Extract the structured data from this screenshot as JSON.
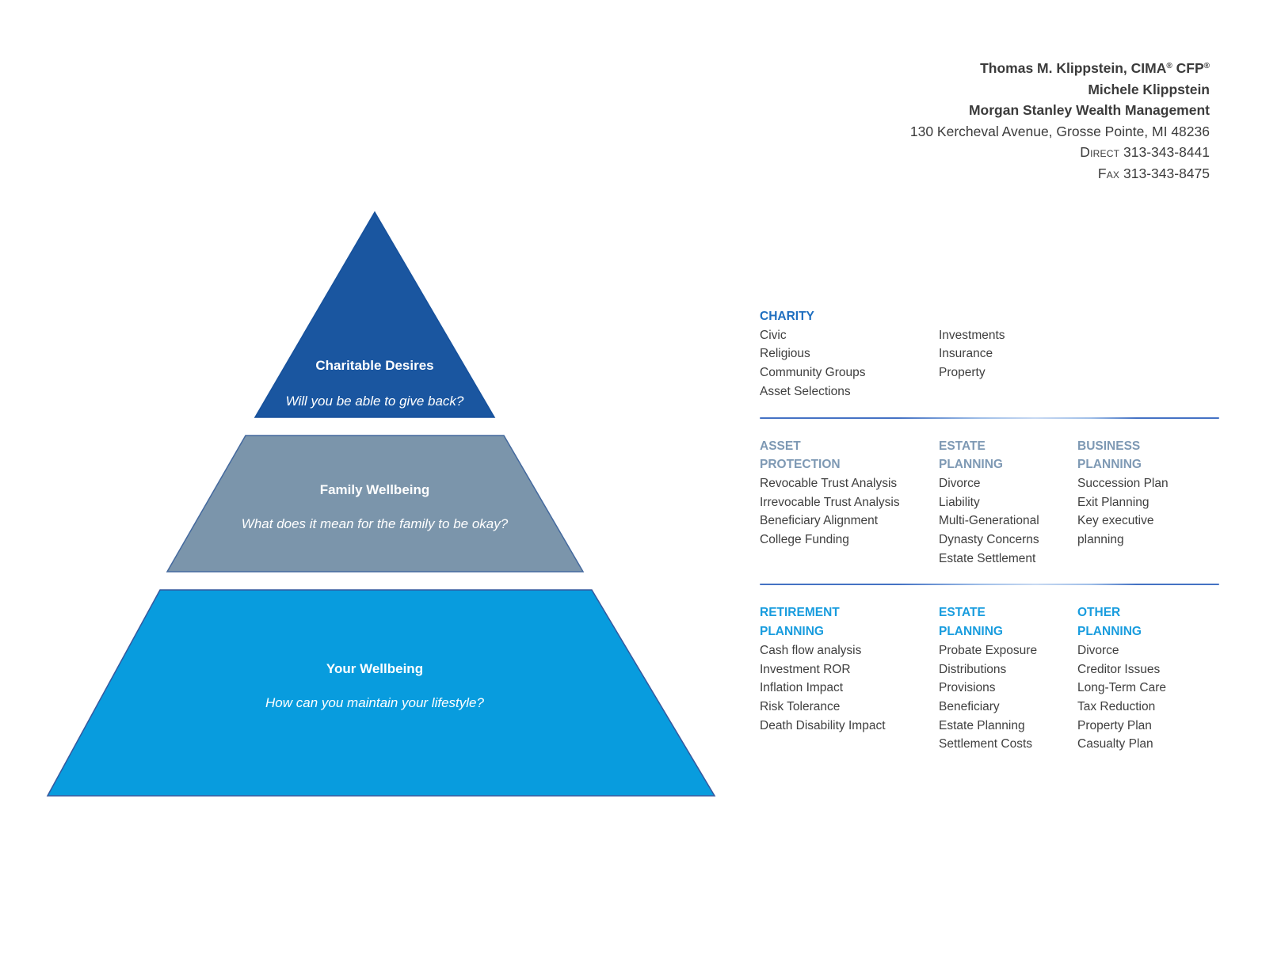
{
  "contact": {
    "name_primary": "Thomas M. Klippstein, CIMA",
    "registered_symbol": "®",
    "name_primary_suffix": " CFP",
    "name_secondary": "Michele Klippstein",
    "firm": "Morgan Stanley Wealth Management",
    "address": "130 Kercheval Avenue, Grosse Pointe, MI 48236",
    "direct_label": "Direct",
    "direct_number": "313-343-8441",
    "fax_label": "Fax",
    "fax_number": "313-343-8475"
  },
  "pyramid": {
    "levels": [
      {
        "title": "Charitable Desires",
        "question": "Will you be able to give back?",
        "fill": "#1a56a0"
      },
      {
        "title": "Family Wellbeing",
        "question": "What does it mean for the family to be okay?",
        "fill": "#7b95ab"
      },
      {
        "title": "Your Wellbeing",
        "question": "How can you maintain your lifestyle?",
        "fill": "#089cde"
      }
    ]
  },
  "panel": {
    "divider_color": "#4472c4",
    "sections": [
      {
        "name": "charity",
        "header_color": "#1f6fc0",
        "header_rows": 1,
        "columns": [
          {
            "header_lines": [
              "CHARITY"
            ],
            "items": [
              "Civic",
              "Religious",
              "Community Groups",
              "Asset Selections"
            ]
          },
          {
            "header_lines": [],
            "items": [
              "Investments",
              "Insurance",
              "Property"
            ]
          }
        ]
      },
      {
        "name": "protection-and-planning",
        "header_color": "#7e99b4",
        "header_rows": 2,
        "columns": [
          {
            "header_lines": [
              "ASSET",
              "PROTECTION"
            ],
            "items": [
              "Revocable Trust Analysis",
              "Irrevocable Trust Analysis",
              "Beneficiary Alignment",
              "College Funding"
            ]
          },
          {
            "header_lines": [
              "ESTATE",
              "PLANNING"
            ],
            "items": [
              "Divorce",
              "Liability",
              "Multi-Generational",
              "Dynasty Concerns",
              "Estate Settlement"
            ]
          },
          {
            "header_lines": [
              "BUSINESS",
              "PLANNING"
            ],
            "items": [
              "Succession Plan",
              "Exit Planning",
              "Key executive\nplanning"
            ]
          }
        ]
      },
      {
        "name": "retirement-and-other",
        "header_color": "#189cde",
        "header_rows": 2,
        "columns": [
          {
            "header_lines": [
              "RETIREMENT",
              "PLANNING"
            ],
            "items": [
              "Cash flow analysis",
              "Investment ROR",
              "Inflation Impact",
              "Risk Tolerance",
              "Death Disability Impact"
            ]
          },
          {
            "header_lines": [
              "ESTATE",
              "PLANNING"
            ],
            "items": [
              "Probate Exposure",
              "Distributions",
              "Provisions",
              "Beneficiary",
              "Estate Planning",
              "Settlement Costs"
            ]
          },
          {
            "header_lines": [
              "OTHER",
              "PLANNING"
            ],
            "items": [
              "Divorce",
              "Creditor Issues",
              "Long-Term Care",
              "Tax Reduction",
              "Property Plan",
              "Casualty Plan"
            ]
          }
        ]
      }
    ]
  }
}
